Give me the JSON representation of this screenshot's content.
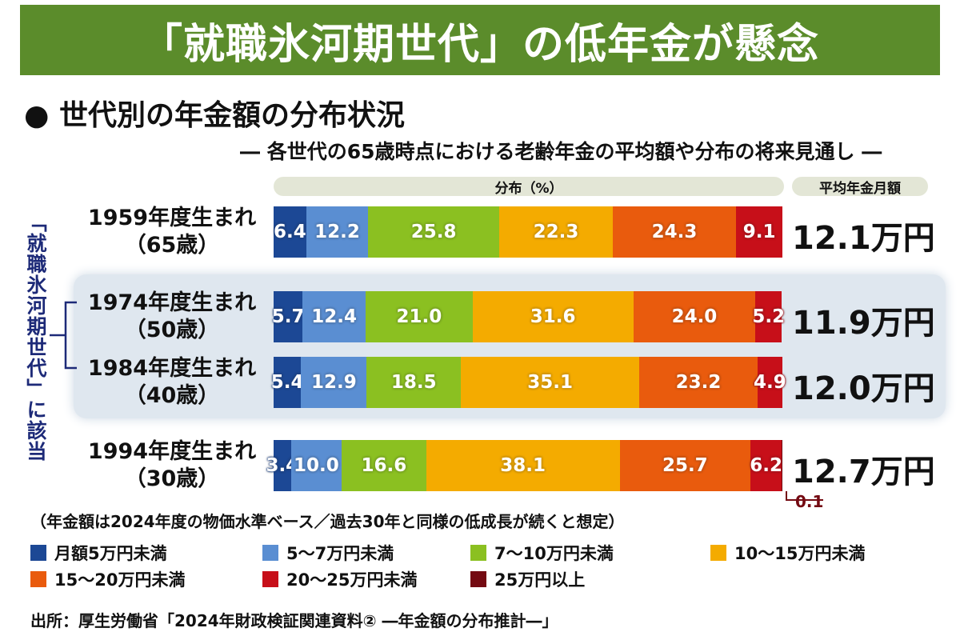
{
  "title": "「就職氷河期世代」の低年金が懸念",
  "subtitle": "● 世代別の年金額の分布状況",
  "subsubtitle": "― 各世代の65歳時点における老齢年金の平均額や分布の将来見通し ―",
  "side_label": "「就職氷河期世代」に該当",
  "note": "（年金額は2024年度の物価水準ベース／過去30年と同様の低成長が続くと想定）",
  "source": "出所：厚生労働省「2024年財政検証関連資料② ―年金額の分布推計―」",
  "chart_data": {
    "type": "bar",
    "orientation": "horizontal-stacked-100",
    "header_distribution": "分布（%）",
    "header_average": "平均年金月額",
    "categories": [
      {
        "line1": "1959年度生まれ",
        "line2": "（65歳）",
        "average": "12.1万円",
        "highlighted": false
      },
      {
        "line1": "1974年度生まれ",
        "line2": "（50歳）",
        "average": "11.9万円",
        "highlighted": true
      },
      {
        "line1": "1984年度生まれ",
        "line2": "（40歳）",
        "average": "12.0万円",
        "highlighted": true
      },
      {
        "line1": "1994年度生まれ",
        "line2": "（30歳）",
        "average": "12.7万円",
        "highlighted": false
      }
    ],
    "series": [
      {
        "name": "月額5万円未満",
        "color": "#1c4895",
        "values": [
          6.4,
          5.7,
          5.4,
          3.4
        ]
      },
      {
        "name": "5～7万円未満",
        "color": "#5a8ed2",
        "values": [
          12.2,
          12.4,
          12.9,
          10.0
        ]
      },
      {
        "name": "7～10万円未満",
        "color": "#8bc021",
        "values": [
          25.8,
          21.0,
          18.5,
          16.6
        ]
      },
      {
        "name": "10～15万円未満",
        "color": "#f4ab00",
        "values": [
          22.3,
          31.6,
          35.1,
          38.1
        ]
      },
      {
        "name": "15～20万円未満",
        "color": "#e95b0d",
        "values": [
          24.3,
          24.0,
          23.2,
          25.7
        ]
      },
      {
        "name": "20～25万円未満",
        "color": "#c70f19",
        "values": [
          9.1,
          5.2,
          4.9,
          6.2
        ]
      },
      {
        "name": "25万円以上",
        "color": "#740a12",
        "values": [
          0,
          0,
          0,
          0.1
        ]
      }
    ]
  }
}
